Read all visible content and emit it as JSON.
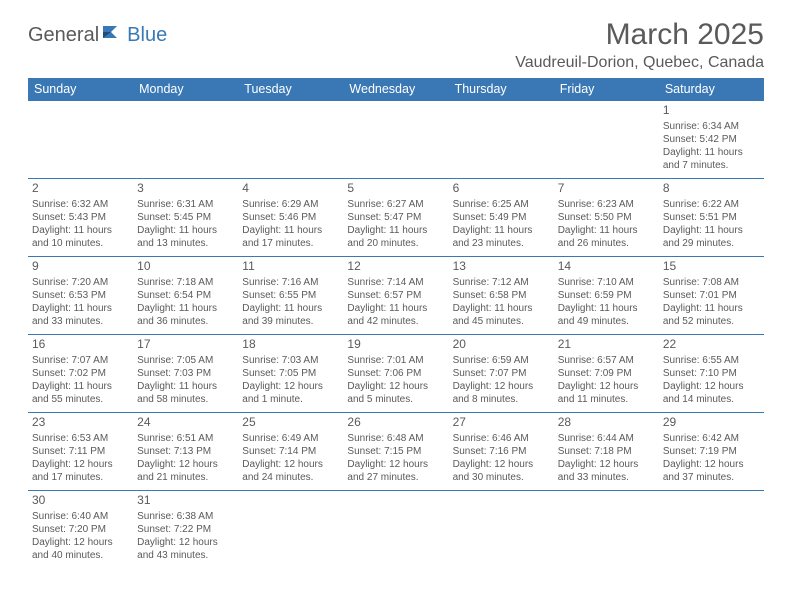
{
  "logo": {
    "general": "General",
    "blue": "Blue"
  },
  "header": {
    "month_title": "March 2025",
    "location": "Vaudreuil-Dorion, Quebec, Canada"
  },
  "colors": {
    "header_bg": "#3a78b5",
    "header_text": "#ffffff",
    "cell_border": "#3a78b5",
    "text": "#5a5a5a",
    "page_bg": "#ffffff"
  },
  "dayNames": [
    "Sunday",
    "Monday",
    "Tuesday",
    "Wednesday",
    "Thursday",
    "Friday",
    "Saturday"
  ],
  "firstDayColumn": 6,
  "daysInMonth": 31,
  "days": {
    "1": {
      "sunrise": "6:34 AM",
      "sunset": "5:42 PM",
      "daylight": "11 hours and 7 minutes."
    },
    "2": {
      "sunrise": "6:32 AM",
      "sunset": "5:43 PM",
      "daylight": "11 hours and 10 minutes."
    },
    "3": {
      "sunrise": "6:31 AM",
      "sunset": "5:45 PM",
      "daylight": "11 hours and 13 minutes."
    },
    "4": {
      "sunrise": "6:29 AM",
      "sunset": "5:46 PM",
      "daylight": "11 hours and 17 minutes."
    },
    "5": {
      "sunrise": "6:27 AM",
      "sunset": "5:47 PM",
      "daylight": "11 hours and 20 minutes."
    },
    "6": {
      "sunrise": "6:25 AM",
      "sunset": "5:49 PM",
      "daylight": "11 hours and 23 minutes."
    },
    "7": {
      "sunrise": "6:23 AM",
      "sunset": "5:50 PM",
      "daylight": "11 hours and 26 minutes."
    },
    "8": {
      "sunrise": "6:22 AM",
      "sunset": "5:51 PM",
      "daylight": "11 hours and 29 minutes."
    },
    "9": {
      "sunrise": "7:20 AM",
      "sunset": "6:53 PM",
      "daylight": "11 hours and 33 minutes."
    },
    "10": {
      "sunrise": "7:18 AM",
      "sunset": "6:54 PM",
      "daylight": "11 hours and 36 minutes."
    },
    "11": {
      "sunrise": "7:16 AM",
      "sunset": "6:55 PM",
      "daylight": "11 hours and 39 minutes."
    },
    "12": {
      "sunrise": "7:14 AM",
      "sunset": "6:57 PM",
      "daylight": "11 hours and 42 minutes."
    },
    "13": {
      "sunrise": "7:12 AM",
      "sunset": "6:58 PM",
      "daylight": "11 hours and 45 minutes."
    },
    "14": {
      "sunrise": "7:10 AM",
      "sunset": "6:59 PM",
      "daylight": "11 hours and 49 minutes."
    },
    "15": {
      "sunrise": "7:08 AM",
      "sunset": "7:01 PM",
      "daylight": "11 hours and 52 minutes."
    },
    "16": {
      "sunrise": "7:07 AM",
      "sunset": "7:02 PM",
      "daylight": "11 hours and 55 minutes."
    },
    "17": {
      "sunrise": "7:05 AM",
      "sunset": "7:03 PM",
      "daylight": "11 hours and 58 minutes."
    },
    "18": {
      "sunrise": "7:03 AM",
      "sunset": "7:05 PM",
      "daylight": "12 hours and 1 minute."
    },
    "19": {
      "sunrise": "7:01 AM",
      "sunset": "7:06 PM",
      "daylight": "12 hours and 5 minutes."
    },
    "20": {
      "sunrise": "6:59 AM",
      "sunset": "7:07 PM",
      "daylight": "12 hours and 8 minutes."
    },
    "21": {
      "sunrise": "6:57 AM",
      "sunset": "7:09 PM",
      "daylight": "12 hours and 11 minutes."
    },
    "22": {
      "sunrise": "6:55 AM",
      "sunset": "7:10 PM",
      "daylight": "12 hours and 14 minutes."
    },
    "23": {
      "sunrise": "6:53 AM",
      "sunset": "7:11 PM",
      "daylight": "12 hours and 17 minutes."
    },
    "24": {
      "sunrise": "6:51 AM",
      "sunset": "7:13 PM",
      "daylight": "12 hours and 21 minutes."
    },
    "25": {
      "sunrise": "6:49 AM",
      "sunset": "7:14 PM",
      "daylight": "12 hours and 24 minutes."
    },
    "26": {
      "sunrise": "6:48 AM",
      "sunset": "7:15 PM",
      "daylight": "12 hours and 27 minutes."
    },
    "27": {
      "sunrise": "6:46 AM",
      "sunset": "7:16 PM",
      "daylight": "12 hours and 30 minutes."
    },
    "28": {
      "sunrise": "6:44 AM",
      "sunset": "7:18 PM",
      "daylight": "12 hours and 33 minutes."
    },
    "29": {
      "sunrise": "6:42 AM",
      "sunset": "7:19 PM",
      "daylight": "12 hours and 37 minutes."
    },
    "30": {
      "sunrise": "6:40 AM",
      "sunset": "7:20 PM",
      "daylight": "12 hours and 40 minutes."
    },
    "31": {
      "sunrise": "6:38 AM",
      "sunset": "7:22 PM",
      "daylight": "12 hours and 43 minutes."
    }
  },
  "labels": {
    "sunrise": "Sunrise:",
    "sunset": "Sunset:",
    "daylight": "Daylight:"
  }
}
